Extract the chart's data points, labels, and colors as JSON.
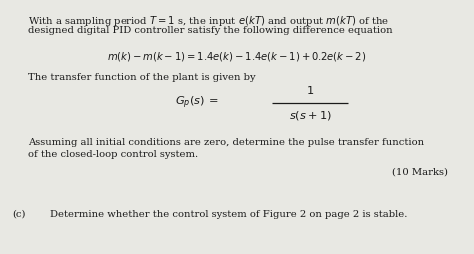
{
  "background_color": "#e8e8e3",
  "text_color": "#1a1a1a",
  "figsize": [
    4.74,
    2.54
  ],
  "dpi": 100,
  "line1": "With a sampling period $T = 1$ s, the input $e(kT)$ and output $m(kT)$ of the",
  "line2": "designed digital PID controller satisfy the following difference equation",
  "eq1": "$m(k) - m(k-1) = 1.4e(k) - 1.4e(k-1) + 0.2e(k-2)$",
  "line3": "The transfer function of the plant is given by",
  "line4": "Assuming all initial conditions are zero, determine the pulse transfer function",
  "line5": "of the closed-loop control system.",
  "marks": "(10 Marks)",
  "part_c_label": "(c)",
  "part_c_text": "Determine whether the control system of Figure 2 on page 2 is stable."
}
